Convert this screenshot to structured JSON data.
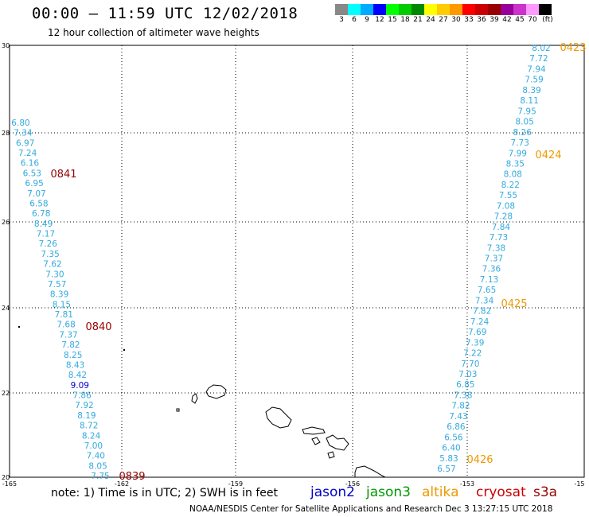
{
  "header": {
    "title": "00:00 – 11:59 UTC 12/02/2018",
    "subtitle": "12 hour collection of altimeter wave heights"
  },
  "color_scale": {
    "labels": [
      "3",
      "6",
      "9",
      "12",
      "15",
      "18",
      "21",
      "24",
      "27",
      "30",
      "33",
      "36",
      "39",
      "42",
      "45",
      "70",
      "(ft)"
    ],
    "colors": [
      "#888888",
      "#00ffff",
      "#00aaff",
      "#0000ff",
      "#00ff00",
      "#00cc00",
      "#008800",
      "#ffff00",
      "#ffcc00",
      "#ff9900",
      "#ff0000",
      "#cc0000",
      "#990000",
      "#990099",
      "#cc33cc",
      "#ff99ff",
      "#000000"
    ]
  },
  "axes": {
    "lon_labels": [
      "-165",
      "-162",
      "-159",
      "-156",
      "-153",
      "-15"
    ],
    "lat_labels": [
      "30",
      "28",
      "26",
      "24",
      "22",
      "20"
    ]
  },
  "tracks": [
    {
      "name": "west",
      "color": "#33aadd",
      "points": [
        "6.80",
        "7.34",
        "6.97",
        "7.24",
        "6.16",
        "6.53",
        "6.95",
        "7.07",
        "6.58",
        "6.78",
        "8.49",
        "7.17",
        "7.26",
        "7.35",
        "7.62",
        "7.30",
        "7.57",
        "8.39",
        "8.15",
        "7.81",
        "7.68",
        "7.37",
        "7.82",
        "8.25",
        "8.43",
        "8.42",
        "9.09",
        "7.86",
        "7.92",
        "8.19",
        "8.72",
        "8.24",
        "7.00",
        "7.40",
        "8.05",
        "7.75"
      ]
    },
    {
      "name": "east",
      "color": "#33aadd",
      "points": [
        "8.02",
        "7.72",
        "7.94",
        "7.59",
        "8.39",
        "8.11",
        "7.95",
        "8.05",
        "8.26",
        "7.73",
        "7.99",
        "8.35",
        "8.08",
        "8.22",
        "7.55",
        "7.08",
        "7.28",
        "7.84",
        "7.73",
        "7.38",
        "7.37",
        "7.36",
        "7.13",
        "7.65",
        "7.34",
        "7.82",
        "7.24",
        "7.69",
        "7.39",
        "7.22",
        "7.70",
        "7.03",
        "6.85",
        "7.38",
        "7.82",
        "7.43",
        "6.86",
        "6.56",
        "6.40",
        "5.83",
        "6.57"
      ]
    }
  ],
  "time_labels": [
    {
      "text": "0841",
      "color": "#990000"
    },
    {
      "text": "0840",
      "color": "#990000"
    },
    {
      "text": "0839",
      "color": "#990000"
    },
    {
      "text": "0423",
      "color": "#ee9900"
    },
    {
      "text": "0424",
      "color": "#ee9900"
    },
    {
      "text": "0425",
      "color": "#ee9900"
    },
    {
      "text": "0426",
      "color": "#ee9900"
    }
  ],
  "footer": {
    "note": "note: 1) Time is in UTC; 2) SWH is in feet",
    "satellites": [
      {
        "name": "jason2",
        "color": "#0000cc"
      },
      {
        "name": "jason3",
        "color": "#009900"
      },
      {
        "name": "altika",
        "color": "#ee9900"
      },
      {
        "name": "cryosat",
        "color": "#cc0000"
      },
      {
        "name": "s3a",
        "color": "#990000"
      }
    ],
    "credit": "NOAA/NESDIS Center for Satellite Applications and Research    Dec  3 13:27:15 UTC 2018"
  }
}
